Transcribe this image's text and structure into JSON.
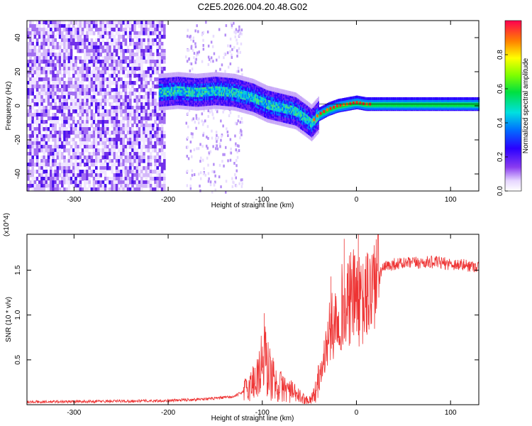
{
  "title": "C2E5.2026.004.20.48.G02",
  "chart_data": [
    {
      "type": "heatmap",
      "xlabel": "Height of straight line (km)",
      "ylabel": "Frequency (Hz)",
      "xlim": [
        -350,
        130
      ],
      "ylim": [
        -50,
        50
      ],
      "xticks": [
        -300,
        -200,
        -100,
        0,
        100
      ],
      "yticks": [
        -40,
        -20,
        0,
        20,
        40
      ],
      "xtick_labels": [
        "-300",
        "-200",
        "-100",
        "0",
        "100"
      ],
      "ytick_labels": [
        "-40",
        "-20",
        "0",
        "20",
        "40"
      ],
      "colorbar": {
        "label": "Normalized spectral amplitude",
        "range": [
          0,
          1
        ],
        "ticks": [
          0.0,
          0.2,
          0.4,
          0.6,
          0.8
        ],
        "tick_labels": [
          "0.0",
          "0.2",
          "0.4",
          "0.6",
          "0.8"
        ]
      },
      "ridge": {
        "x": [
          -210,
          -190,
          -170,
          -150,
          -130,
          -110,
          -95,
          -80,
          -65,
          -55,
          -48,
          -40,
          -30,
          -20,
          -10,
          0,
          10,
          30,
          60,
          90,
          130
        ],
        "freq": [
          8,
          9,
          8,
          9,
          8,
          5,
          1,
          -1,
          -3,
          -7,
          -10,
          -5,
          -2,
          0,
          1,
          2,
          1,
          1,
          1,
          1,
          1
        ]
      }
    },
    {
      "type": "line",
      "xlabel": "Height of straight line (km)",
      "ylabel": "SNR (10 * v/v)",
      "multiplier": "(x10^4)",
      "xlim": [
        -350,
        130
      ],
      "ylim": [
        0,
        19000
      ],
      "xticks": [
        -300,
        -200,
        -100,
        0,
        100
      ],
      "yticks": [
        5000,
        10000,
        15000
      ],
      "xtick_labels": [
        "-300",
        "-200",
        "-100",
        "0",
        "100"
      ],
      "ytick_labels": [
        "0.5",
        "1.0",
        "1.5"
      ],
      "color": "#ee3333",
      "series": [
        {
          "name": "SNR",
          "x": [
            -350,
            -300,
            -250,
            -200,
            -180,
            -150,
            -130,
            -115,
            -105,
            -98,
            -92,
            -85,
            -75,
            -65,
            -55,
            -50,
            -45,
            -40,
            -35,
            -30,
            -25,
            -20,
            -15,
            -12,
            -8,
            -5,
            0,
            5,
            10,
            15,
            20,
            25,
            30,
            40,
            60,
            80,
            100,
            130
          ],
          "y": [
            300,
            350,
            400,
            450,
            550,
            700,
            900,
            1800,
            3200,
            5200,
            3500,
            2200,
            1800,
            1200,
            600,
            500,
            1100,
            2500,
            4800,
            7600,
            8900,
            10200,
            11000,
            9800,
            11500,
            11800,
            12400,
            10800,
            11800,
            12700,
            13900,
            14800,
            15300,
            15700,
            15800,
            15900,
            15700,
            15400
          ]
        }
      ],
      "spikes": [
        {
          "x": -13,
          "y": 18500
        },
        {
          "x": -6,
          "y": 17000
        },
        {
          "x": 2,
          "y": 19000
        },
        {
          "x": -98,
          "y": 10200
        },
        {
          "x": -27,
          "y": 14300
        }
      ]
    }
  ]
}
